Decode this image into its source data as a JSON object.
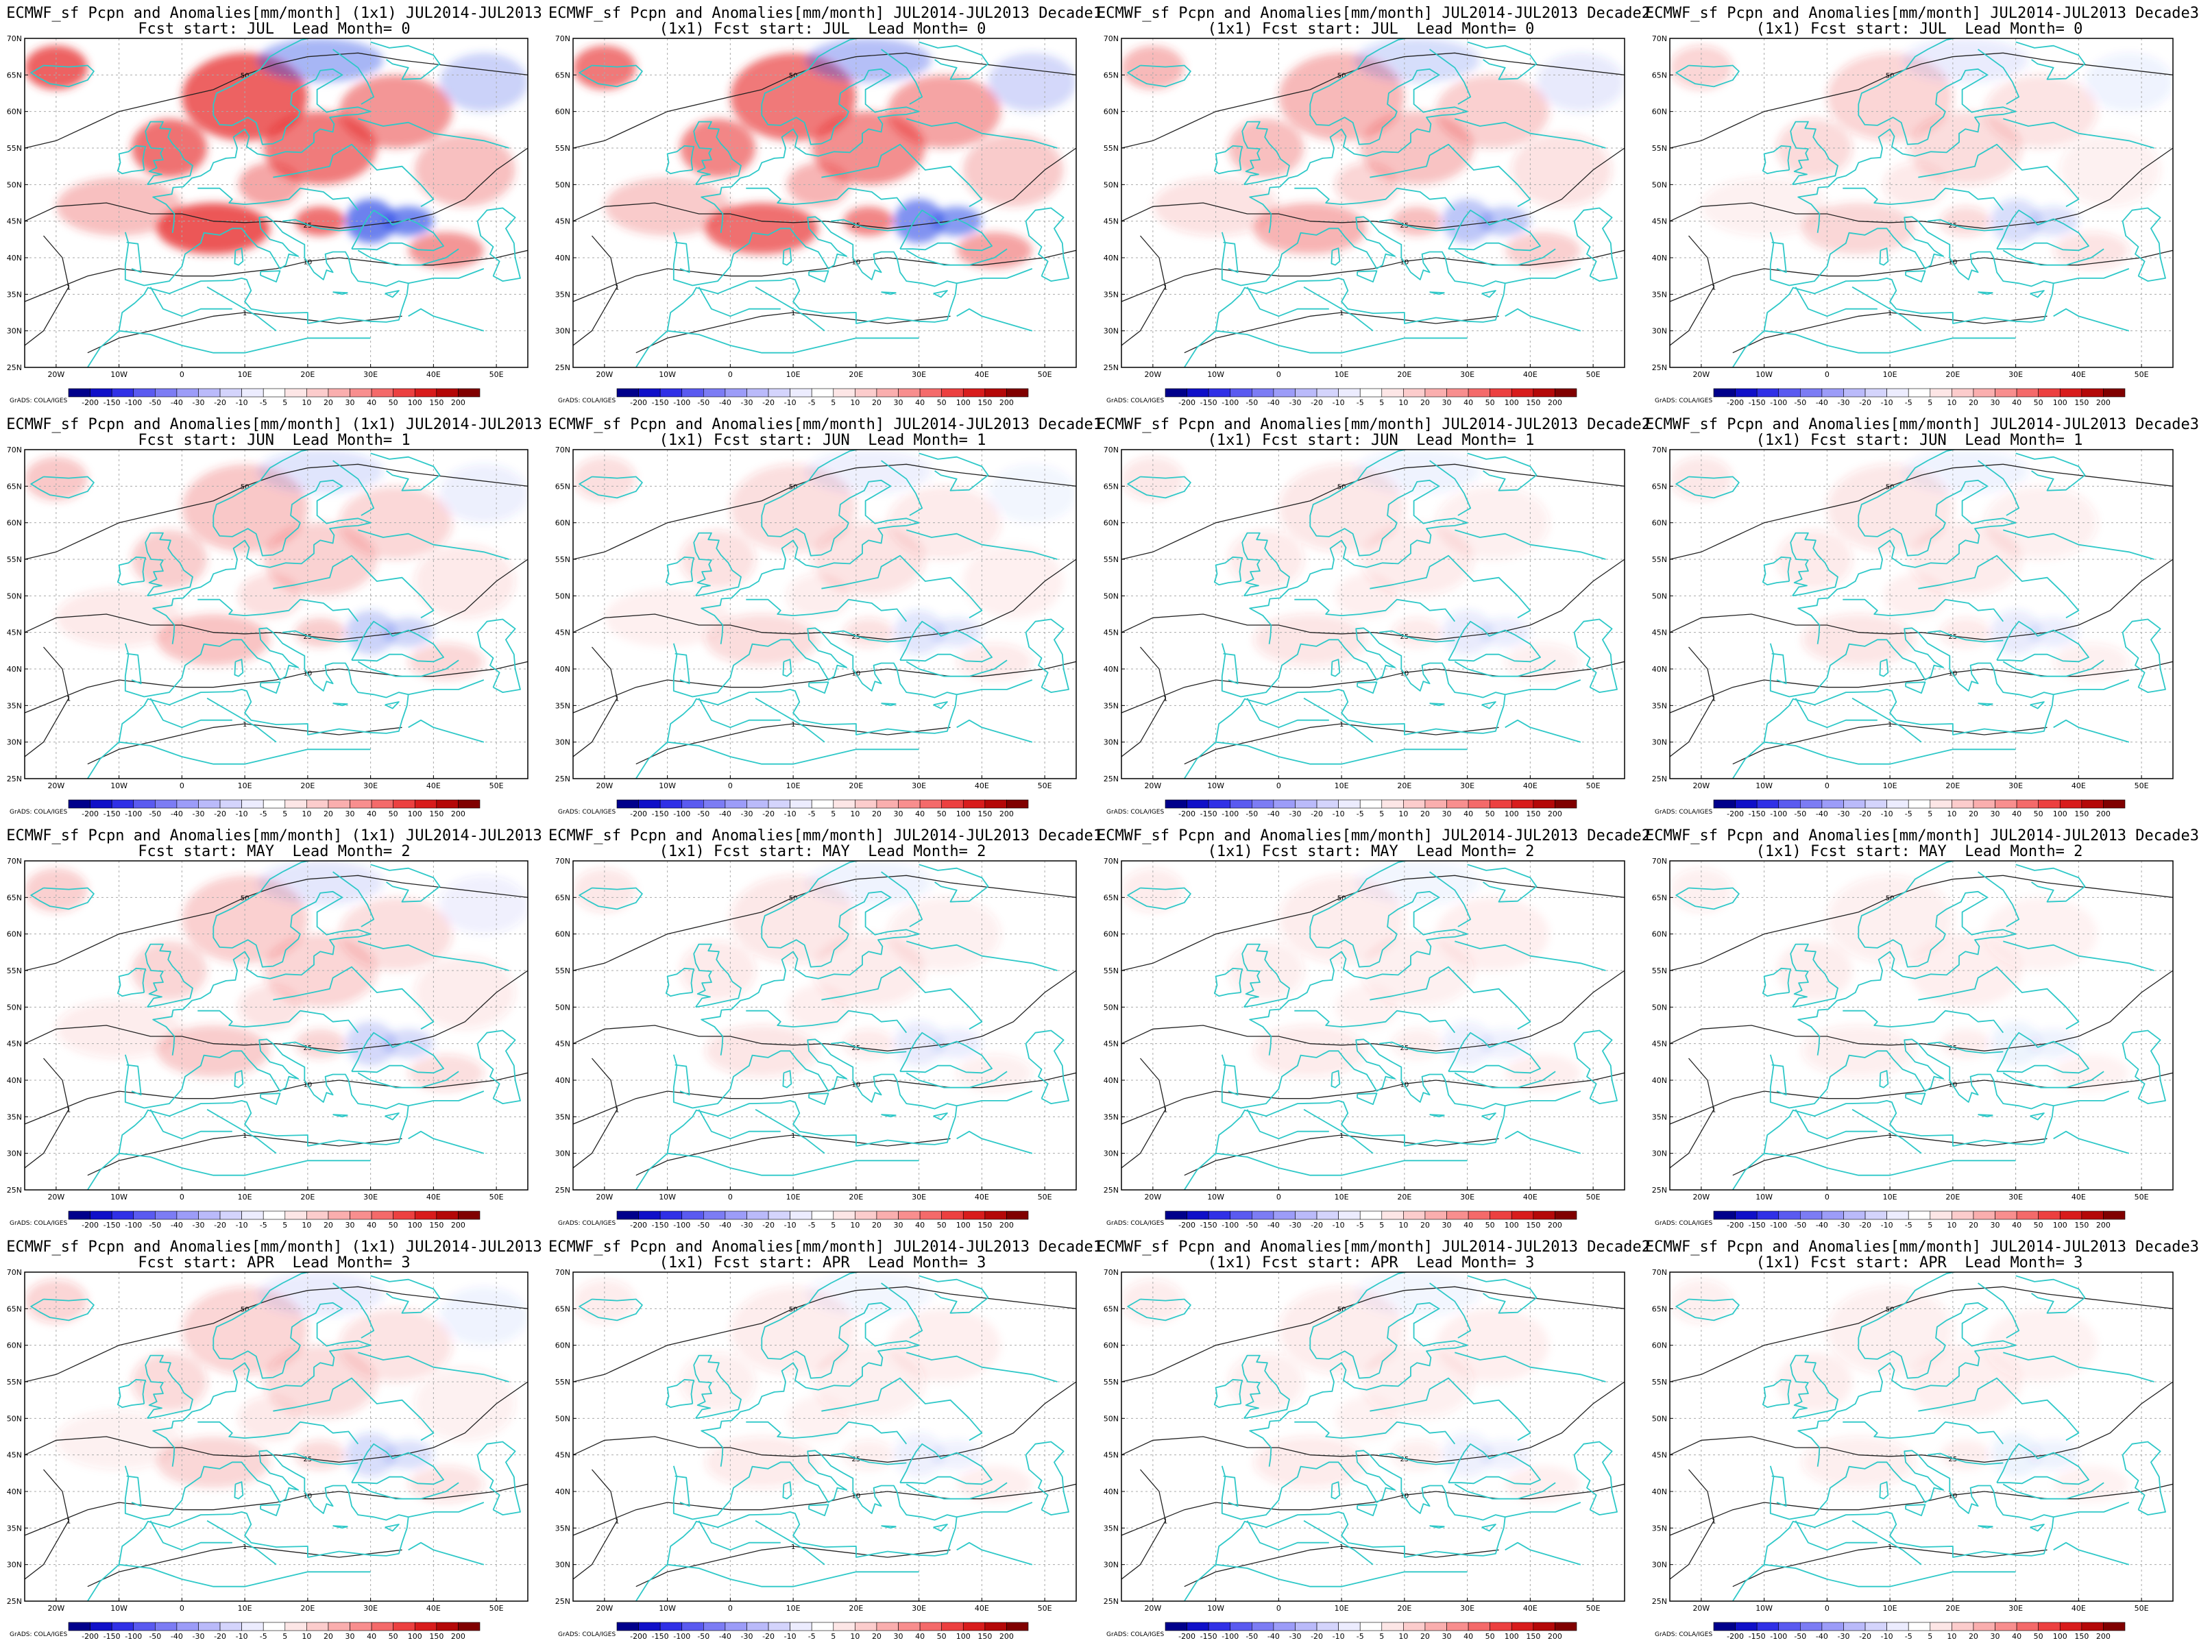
{
  "figure": {
    "panels": [
      {
        "row": 0,
        "col": 0,
        "title1": "ECMWF_sf Pcpn and Anomalies[mm/month] (1x1) JUL2014-JUL2013",
        "title2": "Fcst start: JUL  Lead Month= 0",
        "intensity": 1.0
      },
      {
        "row": 0,
        "col": 1,
        "title1": "ECMWF_sf Pcpn and Anomalies[mm/month] JUL2014-JUL2013 Decade1",
        "title2": "(1x1) Fcst start: JUL  Lead Month= 0",
        "intensity": 0.85
      },
      {
        "row": 0,
        "col": 2,
        "title1": "ECMWF_sf Pcpn and Anomalies[mm/month] JUL2014-JUL2013 Decade2",
        "title2": "(1x1) Fcst start: JUL  Lead Month= 0",
        "intensity": 0.45
      },
      {
        "row": 0,
        "col": 3,
        "title1": "ECMWF_sf Pcpn and Anomalies[mm/month] JUL2014-JUL2013 Decade3",
        "title2": "(1x1) Fcst start: JUL  Lead Month= 0",
        "intensity": 0.25
      },
      {
        "row": 1,
        "col": 0,
        "title1": "ECMWF_sf Pcpn and Anomalies[mm/month] (1x1) JUL2014-JUL2013",
        "title2": "Fcst start: JUN  Lead Month= 1",
        "intensity": 0.35
      },
      {
        "row": 1,
        "col": 1,
        "title1": "ECMWF_sf Pcpn and Anomalies[mm/month] JUL2014-JUL2013 Decade1",
        "title2": "(1x1) Fcst start: JUN  Lead Month= 1",
        "intensity": 0.2
      },
      {
        "row": 1,
        "col": 2,
        "title1": "ECMWF_sf Pcpn and Anomalies[mm/month] JUL2014-JUL2013 Decade2",
        "title2": "(1x1) Fcst start: JUN  Lead Month= 1",
        "intensity": 0.15
      },
      {
        "row": 1,
        "col": 3,
        "title1": "ECMWF_sf Pcpn and Anomalies[mm/month] JUL2014-JUL2013 Decade3",
        "title2": "(1x1) Fcst start: JUN  Lead Month= 1",
        "intensity": 0.15
      },
      {
        "row": 2,
        "col": 0,
        "title1": "ECMWF_sf Pcpn and Anomalies[mm/month] (1x1) JUL2014-JUL2013",
        "title2": "Fcst start: MAY  Lead Month= 2",
        "intensity": 0.3
      },
      {
        "row": 2,
        "col": 1,
        "title1": "ECMWF_sf Pcpn and Anomalies[mm/month] JUL2014-JUL2013 Decade1",
        "title2": "(1x1) Fcst start: MAY  Lead Month= 2",
        "intensity": 0.15
      },
      {
        "row": 2,
        "col": 2,
        "title1": "ECMWF_sf Pcpn and Anomalies[mm/month] JUL2014-JUL2013 Decade2",
        "title2": "(1x1) Fcst start: MAY  Lead Month= 2",
        "intensity": 0.12
      },
      {
        "row": 2,
        "col": 3,
        "title1": "ECMWF_sf Pcpn and Anomalies[mm/month] JUL2014-JUL2013 Decade3",
        "title2": "(1x1) Fcst start: MAY  Lead Month= 2",
        "intensity": 0.1
      },
      {
        "row": 3,
        "col": 0,
        "title1": "ECMWF_sf Pcpn and Anomalies[mm/month] (1x1) JUL2014-JUL2013",
        "title2": "Fcst start: APR  Lead Month= 3",
        "intensity": 0.25
      },
      {
        "row": 3,
        "col": 1,
        "title1": "ECMWF_sf Pcpn and Anomalies[mm/month] JUL2014-JUL2013 Decade1",
        "title2": "(1x1) Fcst start: APR  Lead Month= 3",
        "intensity": 0.12
      },
      {
        "row": 3,
        "col": 2,
        "title1": "ECMWF_sf Pcpn and Anomalies[mm/month] JUL2014-JUL2013 Decade2",
        "title2": "(1x1) Fcst start: APR  Lead Month= 3",
        "intensity": 0.12
      },
      {
        "row": 3,
        "col": 3,
        "title1": "ECMWF_sf Pcpn and Anomalies[mm/month] JUL2014-JUL2013 Decade3",
        "title2": "(1x1) Fcst start: APR  Lead Month= 3",
        "intensity": 0.1
      }
    ],
    "lat_labels": [
      "25N",
      "30N",
      "35N",
      "40N",
      "45N",
      "50N",
      "55N",
      "60N",
      "65N",
      "70N"
    ],
    "lon_labels": [
      "20W",
      "10W",
      "0",
      "10E",
      "20E",
      "30E",
      "40E",
      "50E"
    ],
    "colorbar": {
      "labels": [
        "-200",
        "-150",
        "-100",
        "-50",
        "-40",
        "-30",
        "-20",
        "-10",
        "-5",
        "5",
        "10",
        "20",
        "30",
        "40",
        "50",
        "100",
        "150",
        "200"
      ],
      "colors": [
        "#00008b",
        "#1010c8",
        "#3030e6",
        "#5a5af0",
        "#7c7cf4",
        "#9c9cf8",
        "#babafa",
        "#d4d4fc",
        "#ececfe",
        "#ffffff",
        "#fde6e6",
        "#fccccc",
        "#faaeae",
        "#f88e8e",
        "#f46a6a",
        "#ec4040",
        "#d81c1c",
        "#b40808",
        "#800000"
      ],
      "credit": "GrADS: COLA/IGES"
    },
    "colors": {
      "coast": "#2ec8c8",
      "contour": "#222222",
      "grid": "#aaaaaa",
      "pos": "#e83030",
      "neg": "#3050e8"
    }
  }
}
